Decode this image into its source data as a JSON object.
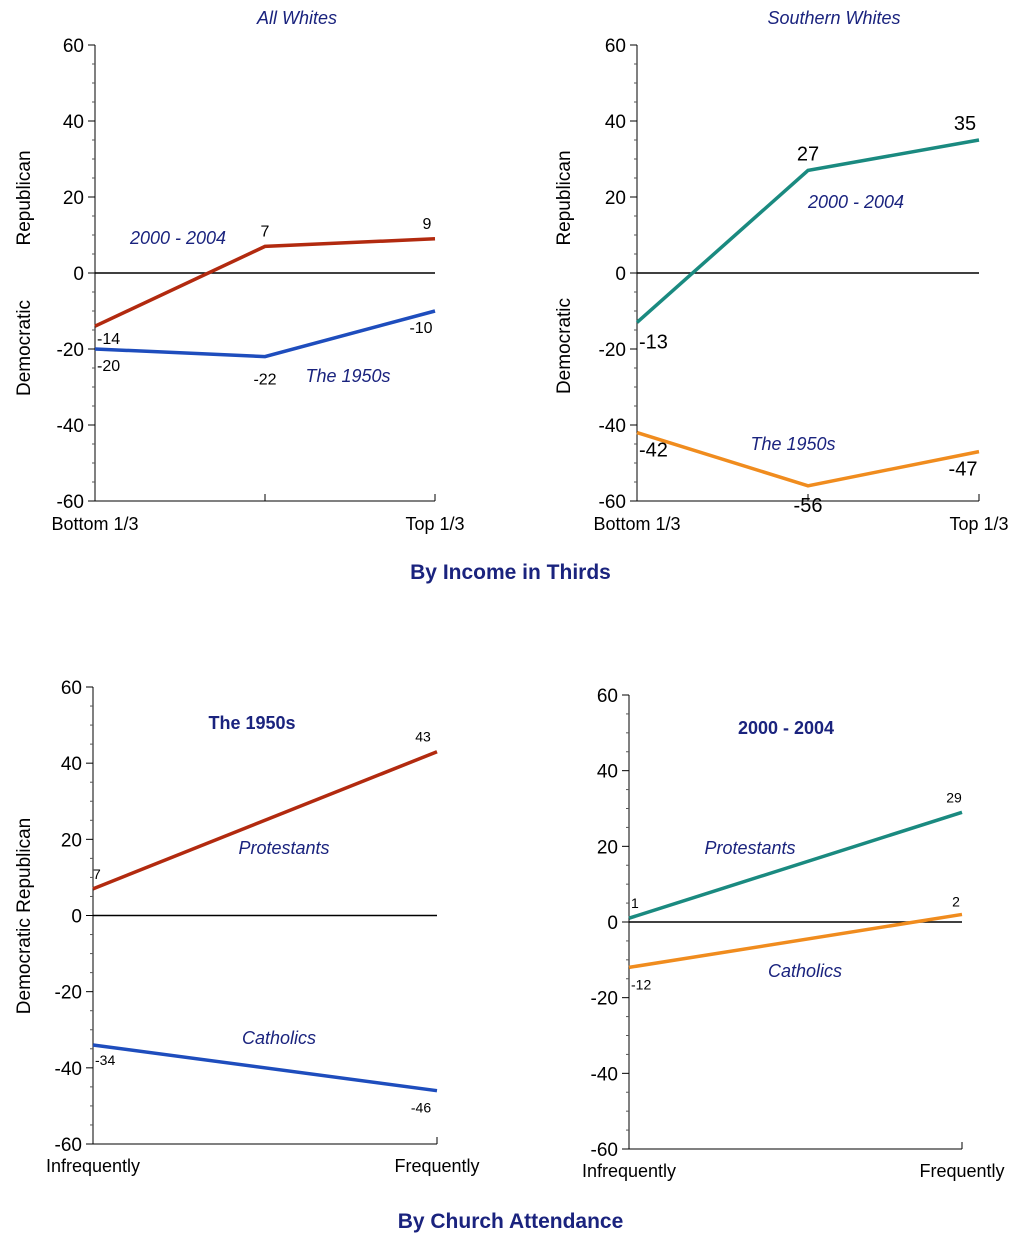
{
  "sections": {
    "income_title": "By Income in Thirds",
    "church_title": "By Church Attendance"
  },
  "colors": {
    "dark_red": "#b22a0f",
    "blue": "#1e4dbd",
    "teal": "#1a8a80",
    "orange": "#f08c1e",
    "navy_text": "#1a237e"
  },
  "chart_data": [
    {
      "type": "line",
      "title": "All Whites",
      "ylabel_top": "Republican",
      "ylabel_bottom": "Democratic",
      "ylim": [
        -60,
        60
      ],
      "y_ticks": [
        60,
        40,
        20,
        0,
        -20,
        -40,
        -60
      ],
      "x_ticks": [
        "Bottom 1/3",
        "",
        "Top 1/3"
      ],
      "series": [
        {
          "name": "2000 - 2004",
          "values": [
            -14,
            7,
            9
          ],
          "labels": [
            "-14",
            "7",
            "9"
          ],
          "color": "#b22a0f"
        },
        {
          "name": "The 1950s",
          "values": [
            -20,
            -22,
            -10
          ],
          "labels": [
            "-20",
            "-22",
            "-10"
          ],
          "color": "#1e4dbd"
        }
      ]
    },
    {
      "type": "line",
      "title": "Southern Whites",
      "ylabel_top": "Republican",
      "ylabel_bottom": "Democratic",
      "ylim": [
        -60,
        60
      ],
      "y_ticks": [
        60,
        40,
        20,
        0,
        -20,
        -40,
        -60
      ],
      "x_ticks": [
        "Bottom 1/3",
        "",
        "Top 1/3"
      ],
      "series": [
        {
          "name": "2000 - 2004",
          "values": [
            -13,
            27,
            35
          ],
          "labels": [
            "-13",
            "27",
            "35"
          ],
          "color": "#1a8a80"
        },
        {
          "name": "The 1950s",
          "values": [
            -42,
            -56,
            -47
          ],
          "labels": [
            "-42",
            "-56",
            "-47"
          ],
          "color": "#f08c1e"
        }
      ]
    },
    {
      "type": "line",
      "title": "The 1950s",
      "ylabel": "Democratic Republican",
      "ylim": [
        -60,
        60
      ],
      "y_ticks": [
        60,
        40,
        20,
        0,
        -20,
        -40,
        -60
      ],
      "x_ticks": [
        "Infrequently",
        "Frequently"
      ],
      "series": [
        {
          "name": "Protestants",
          "values": [
            7,
            43
          ],
          "labels": [
            "7",
            "43"
          ],
          "color": "#b22a0f"
        },
        {
          "name": "Catholics",
          "values": [
            -34,
            -46
          ],
          "labels": [
            "-34",
            "-46"
          ],
          "color": "#1e4dbd"
        }
      ]
    },
    {
      "type": "line",
      "title": "2000 - 2004",
      "ylim": [
        -60,
        60
      ],
      "y_ticks": [
        60,
        40,
        20,
        0,
        -20,
        -40,
        -60
      ],
      "x_ticks": [
        "Infrequently",
        "Frequently"
      ],
      "series": [
        {
          "name": "Protestants",
          "values": [
            1,
            29
          ],
          "labels": [
            "1",
            "29"
          ],
          "color": "#1a8a80"
        },
        {
          "name": "Catholics",
          "values": [
            -12,
            2
          ],
          "labels": [
            "-12",
            "2"
          ],
          "color": "#f08c1e"
        }
      ]
    }
  ]
}
